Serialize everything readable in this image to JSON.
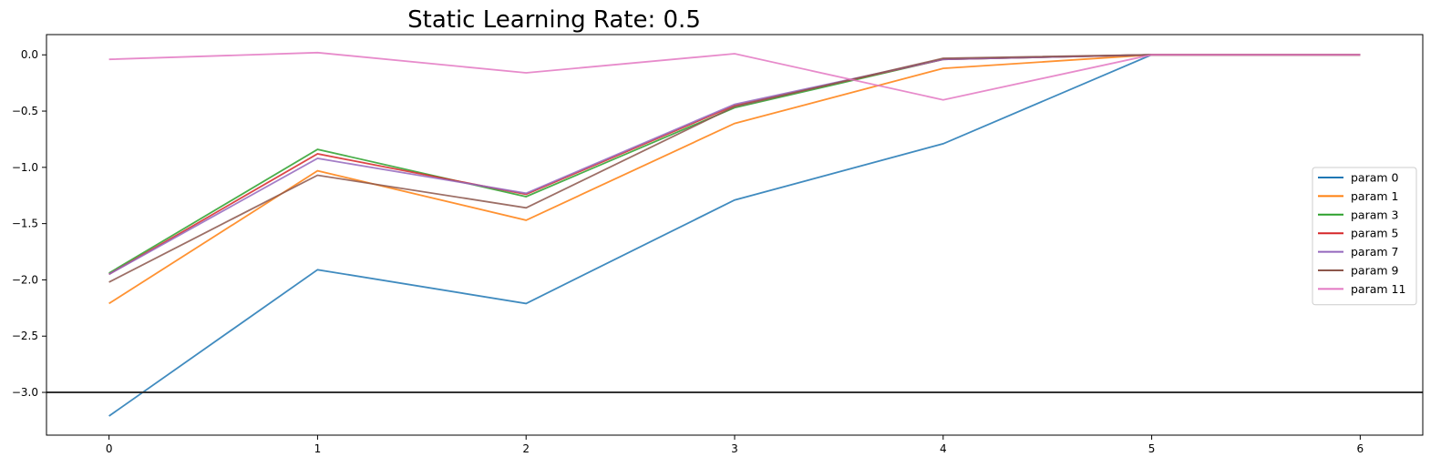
{
  "chart_data": {
    "type": "line",
    "title": "Static Learning Rate: 0.5",
    "xlabel": "",
    "ylabel": "",
    "x": [
      0,
      1,
      2,
      3,
      4,
      5,
      6
    ],
    "xlim": [
      -0.3,
      6.3
    ],
    "ylim": [
      -3.38,
      0.18
    ],
    "x_ticks": [
      0,
      1,
      2,
      3,
      4,
      5,
      6
    ],
    "y_ticks": [
      0.0,
      -0.5,
      -1.0,
      -1.5,
      -2.0,
      -2.5,
      -3.0
    ],
    "x_tick_labels": [
      "0",
      "1",
      "2",
      "3",
      "4",
      "5",
      "6"
    ],
    "y_tick_labels": [
      "0.0",
      "−0.5",
      "−1.0",
      "−1.5",
      "−2.0",
      "−2.5",
      "−3.0"
    ],
    "grid": false,
    "legend_position": "right",
    "hline": {
      "y": -3.0,
      "color": "#333333"
    },
    "series": [
      {
        "name": "param 0",
        "color": "#1f77b4",
        "values": [
          -3.21,
          -1.91,
          -2.21,
          -1.29,
          -0.79,
          0.0,
          0.0
        ]
      },
      {
        "name": "param 1",
        "color": "#ff7f0e",
        "values": [
          -2.21,
          -1.03,
          -1.47,
          -0.61,
          -0.12,
          0.0,
          0.0
        ]
      },
      {
        "name": "param 3",
        "color": "#2ca02c",
        "values": [
          -1.94,
          -0.84,
          -1.26,
          -0.47,
          -0.04,
          0.0,
          0.0
        ]
      },
      {
        "name": "param 5",
        "color": "#d62728",
        "values": [
          -1.95,
          -0.88,
          -1.24,
          -0.45,
          -0.04,
          0.0,
          0.0
        ]
      },
      {
        "name": "param 7",
        "color": "#9467bd",
        "values": [
          -1.95,
          -0.92,
          -1.23,
          -0.44,
          -0.04,
          0.0,
          0.0
        ]
      },
      {
        "name": "param 9",
        "color": "#8c564b",
        "values": [
          -2.02,
          -1.07,
          -1.36,
          -0.46,
          -0.03,
          0.0,
          0.0
        ]
      },
      {
        "name": "param 11",
        "color": "#e377c2",
        "values": [
          -0.04,
          0.02,
          -0.16,
          0.01,
          -0.4,
          0.0,
          0.0
        ]
      }
    ]
  }
}
